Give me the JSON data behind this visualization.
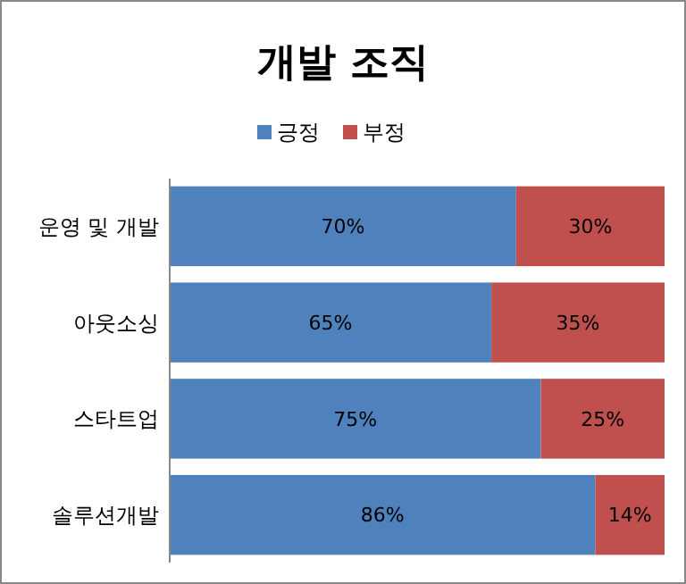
{
  "chart_data": {
    "type": "bar",
    "title": "개발 조직",
    "orientation": "horizontal",
    "stacked": true,
    "legend": "top",
    "categories": [
      "운영 및 개발",
      "아웃소싱",
      "스타트업",
      "솔루션개발"
    ],
    "series": [
      {
        "name": "긍정",
        "color": "#4f81bd",
        "values": [
          70,
          65,
          75,
          86
        ],
        "value_labels": [
          "70%",
          "65%",
          "75%",
          "86%"
        ]
      },
      {
        "name": "부정",
        "color": "#c0504d",
        "values": [
          30,
          35,
          25,
          14
        ],
        "value_labels": [
          "30%",
          "35%",
          "25%",
          "14%"
        ]
      }
    ]
  }
}
